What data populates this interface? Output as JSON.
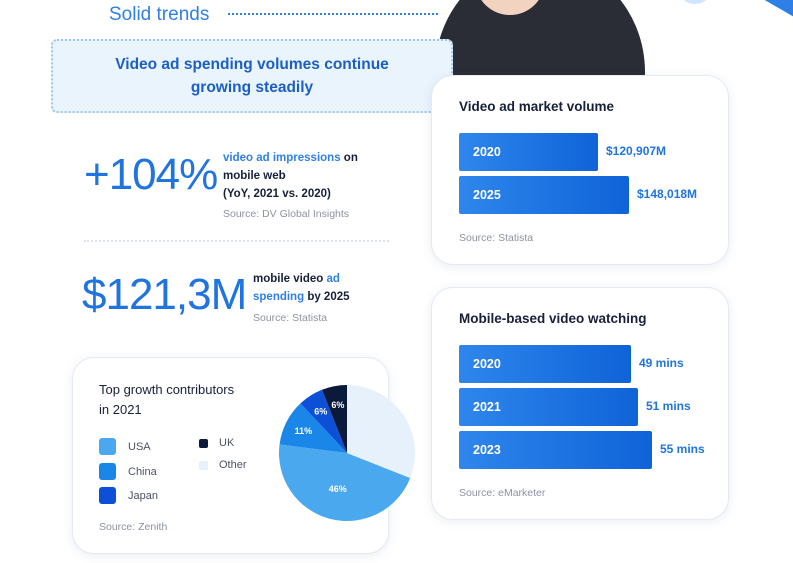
{
  "header": {
    "section_title": "Solid trends",
    "headline_line1": "Video ad spending volumes continue",
    "headline_line2": "growing steadily"
  },
  "stats": [
    {
      "value": "+104%",
      "highlight": "video ad impressions",
      "text_after": " on",
      "line2": "mobile web",
      "line3": "(YoY, 2021 vs. 2020)",
      "source": "Source: DV Global Insights"
    },
    {
      "value": "$121,3M",
      "line1_pre": "mobile video ",
      "line1_hl": "ad",
      "line2_hl": "spending",
      "line2_post": " by 2025",
      "source": "Source: Statista"
    }
  ],
  "market_card": {
    "title": "Video ad market volume",
    "source": "Source: Statista",
    "bars": [
      {
        "label": "2020",
        "value_text": "$120,907M",
        "value": 120907
      },
      {
        "label": "2025",
        "value_text": "$148,018M",
        "value": 148018
      }
    ]
  },
  "watch_card": {
    "title": "Mobile-based video watching",
    "source": "Source: eMarketer",
    "bars": [
      {
        "label": "2020",
        "value_text": "49 mins",
        "value": 49
      },
      {
        "label": "2021",
        "value_text": "51 mins",
        "value": 51
      },
      {
        "label": "2023",
        "value_text": "55 mins",
        "value": 55
      }
    ]
  },
  "contributors": {
    "title_line1": "Top growth contributors",
    "title_line2": "in 2021",
    "source": "Source: Zenith",
    "legend": [
      {
        "name": "USA",
        "color": "#4aa8ef"
      },
      {
        "name": "China",
        "color": "#1a86e8"
      },
      {
        "name": "Japan",
        "color": "#0e4fd8"
      },
      {
        "name": "UK",
        "color": "#0b1a3a"
      },
      {
        "name": "Other",
        "color": "#e6f1fb"
      }
    ],
    "slices": [
      {
        "name": "USA",
        "percent": 46,
        "label": "46%",
        "color": "#4aa8ef"
      },
      {
        "name": "China",
        "percent": 11,
        "label": "11%",
        "color": "#1a86e8"
      },
      {
        "name": "Japan",
        "percent": 6,
        "label": "6%",
        "color": "#0e4fd8"
      },
      {
        "name": "UK",
        "percent": 6,
        "label": "6%",
        "color": "#0b1a3a"
      },
      {
        "name": "Other",
        "percent": 31,
        "label": "",
        "color": "#e6f1fb"
      }
    ]
  }
}
